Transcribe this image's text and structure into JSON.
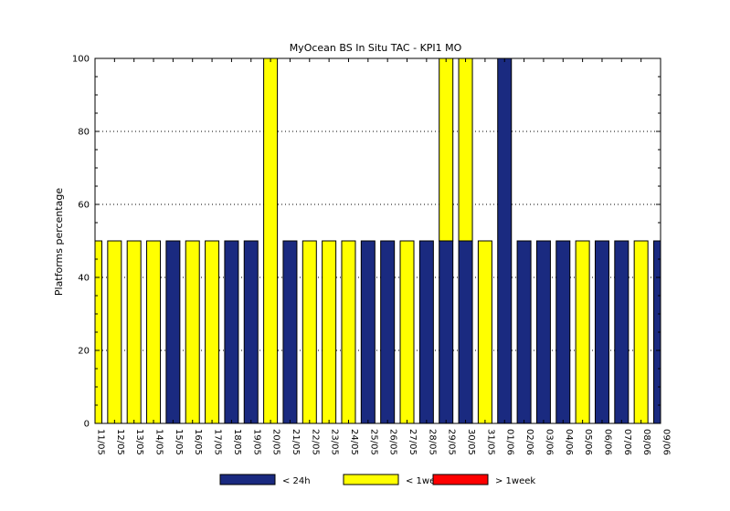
{
  "chart_data": {
    "type": "bar",
    "stacked": true,
    "title": "MyOcean  BS In Situ TAC - KPI1  MO",
    "xlabel": "",
    "ylabel": "Platforms percentage",
    "ylim": [
      0,
      100
    ],
    "yticks": [
      0,
      20,
      40,
      60,
      80,
      100
    ],
    "grid": "horizontal dotted at 40, 60, 80, 100",
    "legend_position": "bottom",
    "categories": [
      "11/05",
      "12/05",
      "13/05",
      "14/05",
      "15/05",
      "16/05",
      "17/05",
      "18/05",
      "19/05",
      "20/05",
      "21/05",
      "22/05",
      "23/05",
      "24/05",
      "25/05",
      "26/05",
      "27/05",
      "28/05",
      "29/05",
      "30/05",
      "31/05",
      "01/06",
      "02/06",
      "03/06",
      "04/06",
      "05/06",
      "06/06",
      "07/06",
      "08/06",
      "09/06"
    ],
    "series": [
      {
        "name": "< 24h",
        "color": "#1a2a80",
        "values": [
          0,
          0,
          0,
          0,
          50,
          0,
          0,
          50,
          50,
          0,
          50,
          0,
          0,
          0,
          50,
          50,
          0,
          50,
          50,
          50,
          0,
          100,
          50,
          50,
          50,
          0,
          50,
          50,
          0,
          50
        ]
      },
      {
        "name": "< 1week",
        "color": "#ffff00",
        "values": [
          50,
          50,
          50,
          50,
          0,
          50,
          50,
          0,
          0,
          100,
          0,
          50,
          50,
          50,
          0,
          0,
          50,
          0,
          50,
          50,
          50,
          0,
          0,
          0,
          0,
          50,
          0,
          0,
          50,
          0
        ]
      },
      {
        "name": "> 1week",
        "color": "#ff0000",
        "values": [
          0,
          0,
          0,
          0,
          0,
          0,
          0,
          0,
          0,
          0,
          0,
          0,
          0,
          0,
          0,
          0,
          0,
          0,
          0,
          0,
          0,
          0,
          0,
          0,
          0,
          0,
          0,
          0,
          0,
          0
        ]
      }
    ]
  }
}
